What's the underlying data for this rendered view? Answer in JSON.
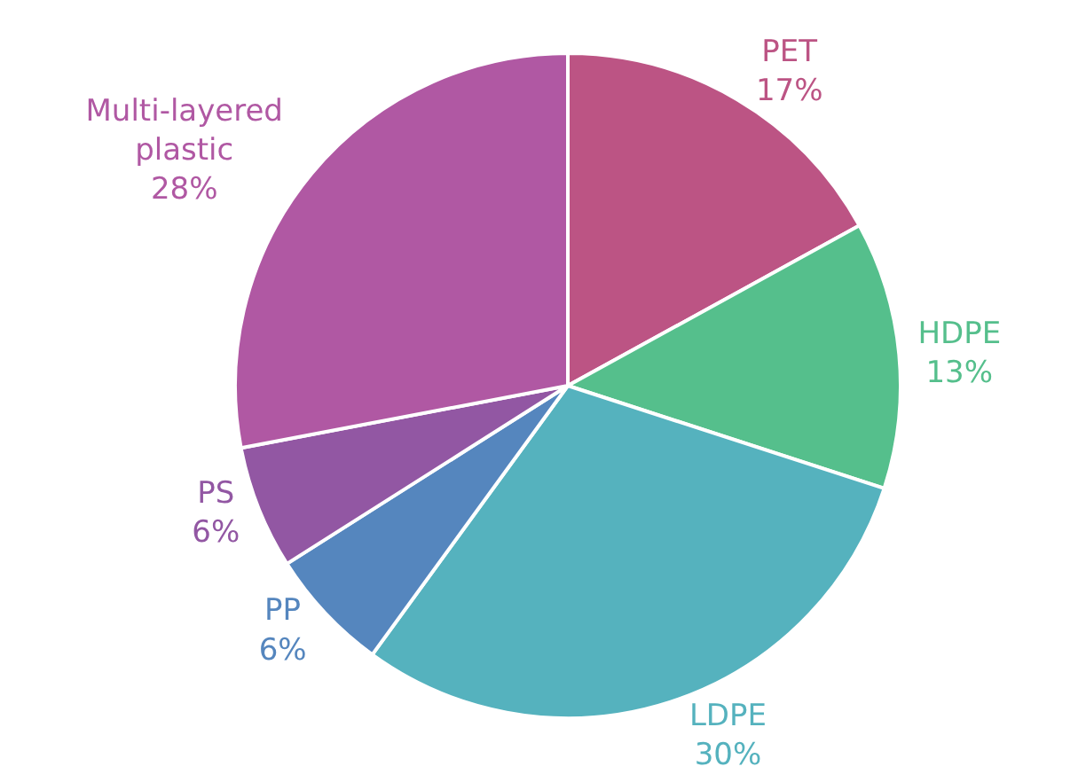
{
  "chart_data": {
    "type": "pie",
    "categories": [
      "PET",
      "HDPE",
      "LDPE",
      "PP",
      "PS",
      "Multi-layered plastic"
    ],
    "values": [
      17,
      13,
      30,
      6,
      6,
      28
    ],
    "value_labels": [
      "17%",
      "13%",
      "30%",
      "6%",
      "6%",
      "28%"
    ],
    "colors": [
      "#bc5484",
      "#55bf8c",
      "#55b2be",
      "#5586be",
      "#9257a3",
      "#b058a3"
    ],
    "legend": false
  }
}
